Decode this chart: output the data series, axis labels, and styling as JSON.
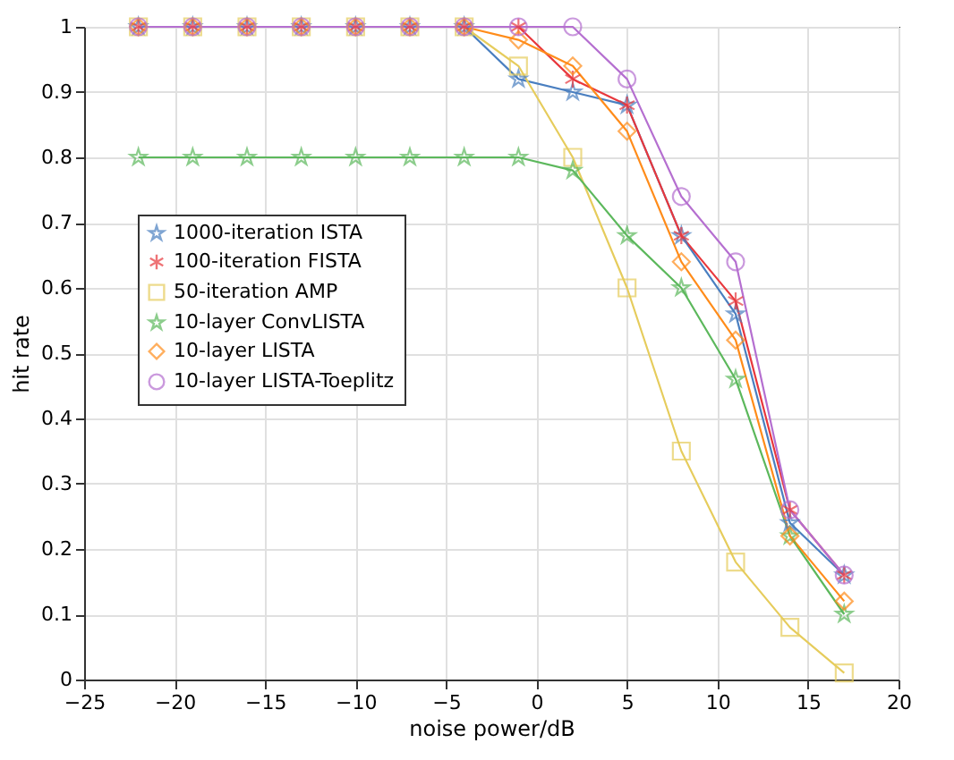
{
  "chart_data": {
    "type": "line",
    "xlabel": "noise power/dB",
    "ylabel": "hit rate",
    "x": [
      -22,
      -19,
      -16,
      -13,
      -10,
      -7,
      -4,
      -1,
      2,
      5,
      8,
      11,
      14,
      17
    ],
    "xlim": [
      -25,
      20
    ],
    "xticks": [
      -25,
      -20,
      -15,
      -10,
      -5,
      0,
      5,
      10,
      15,
      20
    ],
    "ylim": [
      0,
      1
    ],
    "yticks": [
      0,
      0.1,
      0.2,
      0.3,
      0.4,
      0.5,
      0.6,
      0.7,
      0.8,
      0.9,
      1
    ],
    "grid": true,
    "legend": "left",
    "line_style": "solid",
    "series": [
      {
        "name": "1000-iteration ISTA",
        "color": "#4a7fc0",
        "marker": "star",
        "values": [
          1,
          1,
          1,
          1,
          1,
          1,
          1,
          0.92,
          0.9,
          0.88,
          0.68,
          0.56,
          0.24,
          0.16
        ]
      },
      {
        "name": "100-iteration FISTA",
        "color": "#e8383d",
        "marker": "cross",
        "values": [
          1,
          1,
          1,
          1,
          1,
          1,
          1,
          1,
          0.92,
          0.88,
          0.68,
          0.58,
          0.26,
          0.16
        ]
      },
      {
        "name": "50-iteration AMP",
        "color": "#e6cc5c",
        "marker": "square",
        "values": [
          1,
          1,
          1,
          1,
          1,
          1,
          1,
          0.94,
          0.8,
          0.6,
          0.35,
          0.18,
          0.08,
          0.01
        ]
      },
      {
        "name": "10-layer ConvLISTA",
        "color": "#5cb85c",
        "marker": "star",
        "values": [
          0.8,
          0.8,
          0.8,
          0.8,
          0.8,
          0.8,
          0.8,
          0.8,
          0.78,
          0.68,
          0.6,
          0.46,
          0.22,
          0.1
        ]
      },
      {
        "name": "10-layer LISTA",
        "color": "#ff8c1a",
        "marker": "diamond",
        "values": [
          1,
          1,
          1,
          1,
          1,
          1,
          1,
          0.98,
          0.94,
          0.84,
          0.64,
          0.52,
          0.22,
          0.12
        ]
      },
      {
        "name": "10-layer LISTA-Toeplitz",
        "color": "#b56fd0",
        "marker": "circle",
        "values": [
          1,
          1,
          1,
          1,
          1,
          1,
          1,
          1,
          1,
          0.92,
          0.74,
          0.64,
          0.26,
          0.16
        ]
      }
    ]
  }
}
